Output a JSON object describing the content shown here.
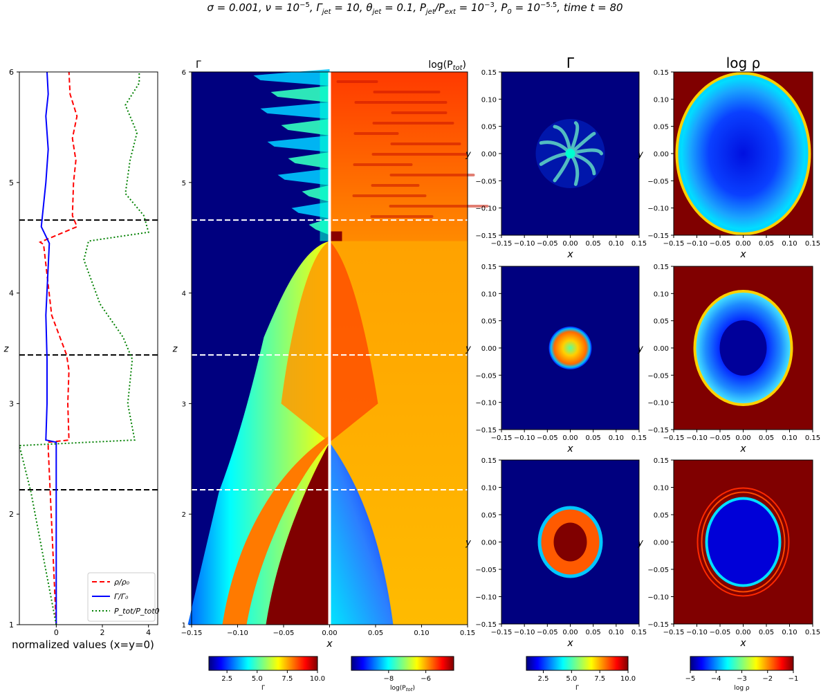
{
  "figure": {
    "title_parts": [
      "σ = 0.001, ν = 10",
      "−5",
      ", Γ",
      "jet",
      " = 10, θ",
      "jet",
      " = 0.1, P",
      "jet",
      "/P",
      "ext",
      " = 10",
      "−3",
      ", P",
      "0",
      " = 10",
      "−5.5",
      ", time t = 80"
    ]
  },
  "colors": {
    "rho_line": "#ff0000",
    "gamma_line": "#0000ff",
    "ptot_line": "#008000",
    "jet_dark_red": "#800000",
    "jet_dark_blue": "#00007f",
    "dashed_marker": "#000000"
  },
  "chart_data": [
    {
      "id": "profile",
      "type": "line",
      "orientation": "vertical",
      "xlabel": "normalized values (x=y=0)",
      "ylabel": "z",
      "xlim": [
        -1.6,
        4.4
      ],
      "ylim": [
        1,
        6
      ],
      "xticks": [
        0,
        2,
        4
      ],
      "yticks": [
        1,
        2,
        3,
        4,
        5,
        6
      ],
      "hlines": [
        2.22,
        3.44,
        4.66
      ],
      "legend_position": "lower-right",
      "series": [
        {
          "name": "ρ/ρ₀",
          "style": "dashed",
          "color": "#ff0000",
          "points": [
            [
              0.0,
              1.0
            ],
            [
              -0.35,
              2.6
            ],
            [
              -0.35,
              2.65
            ],
            [
              0.55,
              2.67
            ],
            [
              0.5,
              3.0
            ],
            [
              0.55,
              3.3
            ],
            [
              0.45,
              3.44
            ],
            [
              -0.2,
              3.8
            ],
            [
              -0.55,
              4.44
            ],
            [
              -0.7,
              4.46
            ],
            [
              0.9,
              4.6
            ],
            [
              0.7,
              4.7
            ],
            [
              0.75,
              5.0
            ],
            [
              0.85,
              5.2
            ],
            [
              0.7,
              5.4
            ],
            [
              0.9,
              5.6
            ],
            [
              0.6,
              5.8
            ],
            [
              0.55,
              6.0
            ]
          ]
        },
        {
          "name": "Γ/Γ₀",
          "style": "solid",
          "color": "#0000ff",
          "points": [
            [
              0.0,
              1.0
            ],
            [
              0.0,
              2.65
            ],
            [
              -0.45,
              2.67
            ],
            [
              -0.4,
              3.0
            ],
            [
              -0.4,
              3.4
            ],
            [
              -0.45,
              3.8
            ],
            [
              -0.3,
              4.45
            ],
            [
              -0.65,
              4.6
            ],
            [
              -0.55,
              4.8
            ],
            [
              -0.45,
              5.0
            ],
            [
              -0.35,
              5.3
            ],
            [
              -0.45,
              5.6
            ],
            [
              -0.35,
              5.8
            ],
            [
              -0.4,
              6.0
            ]
          ]
        },
        {
          "name": "P_tot/P_tot0",
          "style": "dotted",
          "color": "#008000",
          "points": [
            [
              0.0,
              1.0
            ],
            [
              -1.1,
              2.2
            ],
            [
              -1.6,
              2.62
            ],
            [
              3.4,
              2.67
            ],
            [
              3.1,
              3.0
            ],
            [
              3.3,
              3.4
            ],
            [
              2.9,
              3.6
            ],
            [
              1.9,
              3.9
            ],
            [
              1.2,
              4.3
            ],
            [
              1.4,
              4.47
            ],
            [
              4.0,
              4.55
            ],
            [
              3.8,
              4.7
            ],
            [
              3.0,
              4.9
            ],
            [
              3.2,
              5.2
            ],
            [
              3.5,
              5.45
            ],
            [
              3.0,
              5.7
            ],
            [
              3.6,
              5.9
            ],
            [
              3.6,
              6.0
            ]
          ]
        }
      ]
    },
    {
      "id": "jet_map",
      "type": "heatmap",
      "xlabel": "x",
      "ylabel": "z",
      "left_label": "Γ",
      "right_label": "log(P",
      "right_label_sub": "tot",
      "xlim": [
        -0.15,
        0.15
      ],
      "ylim": [
        1,
        6
      ],
      "xtick_labels": [
        "−0.15",
        "−0.10",
        "−0.05",
        "0.00",
        "0.05",
        "0.10",
        "0.15"
      ],
      "yticks": [
        1,
        2,
        3,
        4,
        5,
        6
      ],
      "hlines": [
        2.22,
        3.44,
        4.66
      ],
      "bow_shock_apex_z": 2.65,
      "jet_head_z": 4.47,
      "colorbars": [
        {
          "label": "Γ",
          "range": [
            1,
            10
          ],
          "tick_labels": [
            "2.5",
            "5.0",
            "7.5",
            "10.0"
          ]
        },
        {
          "label": "log(P",
          "label_sub": "tot",
          "range": [
            -10,
            -4.5
          ],
          "tick_labels": [
            "−8",
            "−6"
          ]
        }
      ]
    },
    {
      "id": "slices",
      "type": "heatmap",
      "columns": [
        {
          "title": "Γ",
          "colorbar": {
            "label": "Γ",
            "range": [
              1,
              10
            ],
            "tick_labels": [
              "2.5",
              "5.0",
              "7.5",
              "10.0"
            ]
          }
        },
        {
          "title": "log ρ",
          "colorbar": {
            "label": "log ρ",
            "range": [
              -5,
              -1
            ],
            "tick_labels": [
              "−5",
              "−4",
              "−3",
              "−2",
              "−1"
            ]
          }
        }
      ],
      "rows_z": [
        4.66,
        3.44,
        2.22
      ],
      "xlabel": "x",
      "ylabel": "y",
      "xlim": [
        -0.15,
        0.15
      ],
      "ylim": [
        -0.15,
        0.15
      ],
      "xtick_labels": [
        "−0.15",
        "−0.10",
        "−0.05",
        "0.00",
        "0.05",
        "0.10",
        "0.15"
      ],
      "ytick_labels": [
        "0.15",
        "0.10",
        "0.05",
        "0.00",
        "−0.05",
        "−0.10",
        "−0.15"
      ]
    }
  ]
}
